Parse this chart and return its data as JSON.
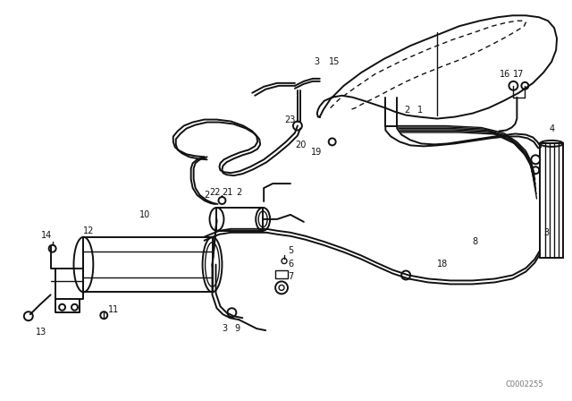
{
  "bg_color": "#ffffff",
  "line_color": "#111111",
  "text_color": "#111111",
  "fig_width": 6.4,
  "fig_height": 4.48,
  "dpi": 100,
  "watermark": "C0002255"
}
